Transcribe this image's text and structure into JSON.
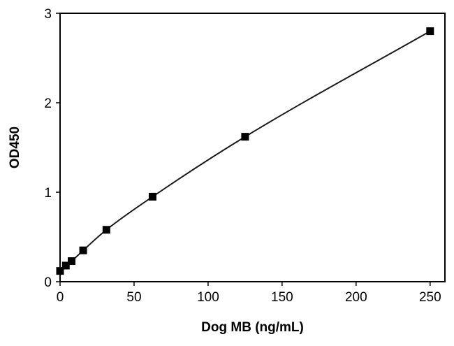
{
  "chart_data": {
    "type": "scatter",
    "title": "",
    "xlabel": "Dog MB (ng/mL)",
    "ylabel": "OD450",
    "xlim": [
      0,
      260
    ],
    "ylim": [
      0,
      3
    ],
    "xticks": [
      "0",
      "50",
      "100",
      "150",
      "200",
      "250"
    ],
    "yticks": [
      "0",
      "1",
      "2",
      "3"
    ],
    "grid": false,
    "legend": "none",
    "fit_line": true,
    "series": [
      {
        "x": [
          0,
          3.9,
          7.8,
          15.6,
          31.3,
          62.5,
          125,
          250
        ],
        "y": [
          0.12,
          0.18,
          0.23,
          0.35,
          0.58,
          0.95,
          1.62,
          2.8
        ]
      }
    ],
    "colors": {
      "marker": "#000000",
      "line": "#1a1a1a",
      "axis": "#000000"
    }
  }
}
